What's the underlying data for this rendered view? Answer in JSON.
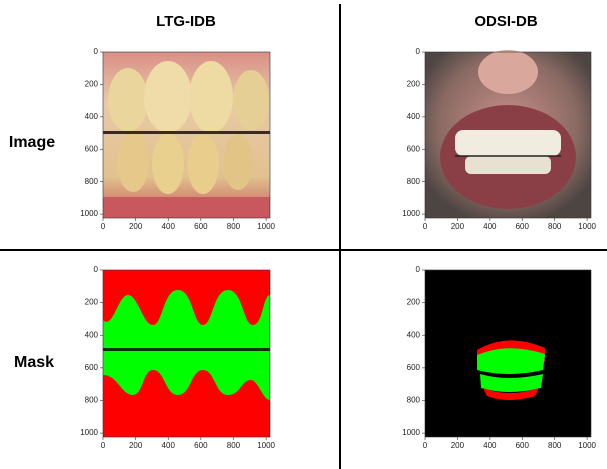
{
  "columns": [
    "LTG-IDB",
    "ODSI-DB"
  ],
  "rows": [
    "Image",
    "Mask"
  ],
  "axis": {
    "lim": [
      0,
      1024
    ],
    "ticks": [
      0,
      200,
      400,
      600,
      800,
      1000
    ]
  }
}
